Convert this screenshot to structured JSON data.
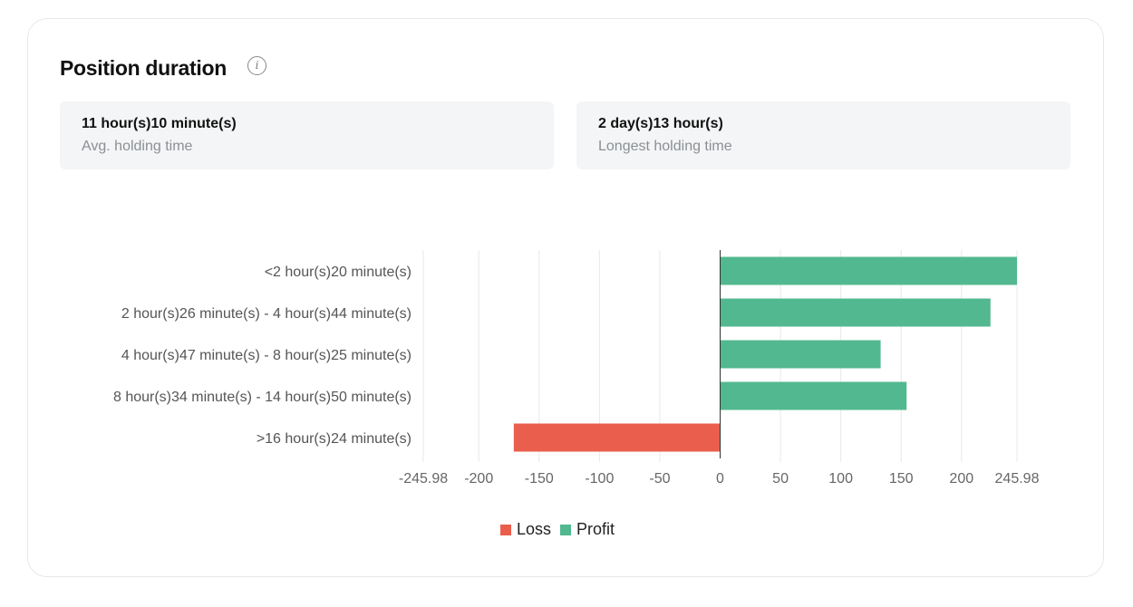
{
  "title": "Position duration",
  "info_icon": "info-icon",
  "stats": [
    {
      "value": "11 hour(s)10 minute(s)",
      "label": "Avg. holding time"
    },
    {
      "value": "2 day(s)13 hour(s)",
      "label": "Longest holding time"
    }
  ],
  "chart_data": {
    "type": "bar",
    "orientation": "horizontal",
    "categories": [
      "<2 hour(s)20 minute(s)",
      "2 hour(s)26 minute(s) - 4 hour(s)44 minute(s)",
      "4 hour(s)47 minute(s) - 8 hour(s)25 minute(s)",
      "8 hour(s)34 minute(s) - 14 hour(s)50 minute(s)",
      ">16 hour(s)24 minute(s)"
    ],
    "series": [
      {
        "name": "Loss",
        "color": "#ea5e4d",
        "values": [
          null,
          null,
          null,
          null,
          -171
        ]
      },
      {
        "name": "Profit",
        "color": "#52b88f",
        "values": [
          245.98,
          224,
          133,
          154.5,
          null
        ]
      }
    ],
    "xlim": [
      -245.98,
      245.98
    ],
    "xticks": [
      "-245.98",
      "-200",
      "-150",
      "-100",
      "-50",
      "0",
      "50",
      "100",
      "150",
      "200",
      "245.98"
    ],
    "grid": true,
    "legend": "bottom"
  }
}
